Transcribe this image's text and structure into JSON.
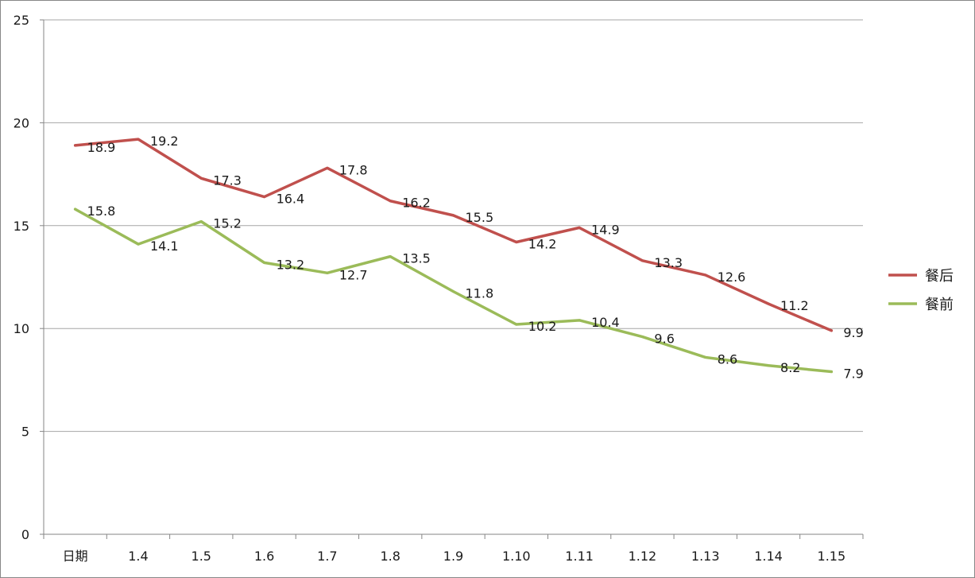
{
  "chart_data": {
    "type": "line",
    "categories": [
      "日期",
      "1.4",
      "1.5",
      "1.6",
      "1.7",
      "1.8",
      "1.9",
      "1.10",
      "1.11",
      "1.12",
      "1.13",
      "1.14",
      "1.15"
    ],
    "series": [
      {
        "name": "餐后",
        "color": "#c0504d",
        "values": [
          18.9,
          19.2,
          17.3,
          16.4,
          17.8,
          16.2,
          15.5,
          14.2,
          14.9,
          13.3,
          12.6,
          11.2,
          9.9
        ],
        "labels": [
          "18.9",
          "19.2",
          "17.3",
          "16.4",
          "17.8",
          "16.2",
          "15.5",
          "14.2",
          "14.9",
          "13.3",
          "12.6",
          "11.2",
          "9.9"
        ]
      },
      {
        "name": "餐前",
        "color": "#9bbb59",
        "values": [
          15.8,
          14.1,
          15.2,
          13.2,
          12.7,
          13.5,
          11.8,
          10.2,
          10.4,
          9.6,
          8.6,
          8.2,
          7.9
        ],
        "labels": [
          "15.8",
          "14.1",
          "15.2",
          "13.2",
          "12.7",
          "13.5",
          "11.8",
          "10.2",
          "10.4",
          "9.6",
          "8.6",
          "8.2",
          "7.9"
        ]
      }
    ],
    "yticks": [
      "0",
      "5",
      "10",
      "15",
      "20",
      "25"
    ],
    "ylim": [
      0,
      25
    ],
    "grid": true,
    "legend": "right"
  }
}
